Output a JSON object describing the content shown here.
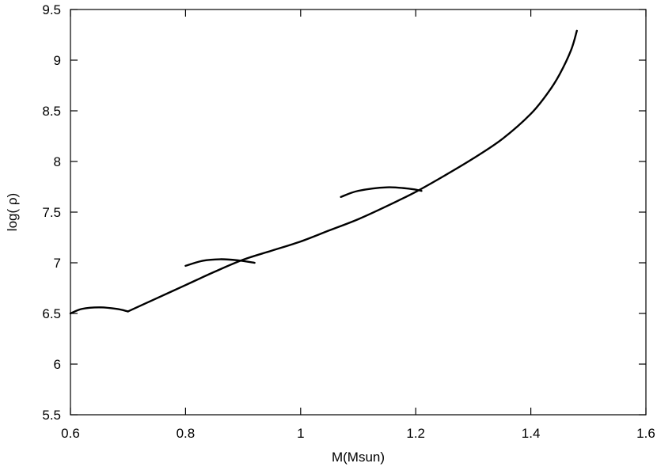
{
  "chart_data": {
    "type": "line",
    "title": "",
    "xlabel": "M(Msun)",
    "ylabel": "log( ρ)",
    "xlim": [
      0.6,
      1.6
    ],
    "ylim": [
      5.5,
      9.5
    ],
    "xticks": [
      "0.6",
      "0.8",
      "1",
      "1.2",
      "1.4",
      "1.6"
    ],
    "yticks": [
      "5.5",
      "6",
      "6.5",
      "7",
      "7.5",
      "8",
      "8.5",
      "9",
      "9.5"
    ],
    "grid": false,
    "legend": "none",
    "color": "#000000",
    "series": [
      {
        "x": [
          0.7,
          0.75,
          0.8,
          0.85,
          0.9,
          0.95,
          1.0,
          1.05,
          1.1,
          1.15,
          1.2,
          1.25,
          1.3,
          1.35,
          1.4,
          1.43,
          1.45,
          1.47,
          1.48
        ],
        "y": [
          6.52,
          6.65,
          6.78,
          6.91,
          7.03,
          7.12,
          7.21,
          7.32,
          7.43,
          7.56,
          7.7,
          7.86,
          8.03,
          8.22,
          8.47,
          8.68,
          8.86,
          9.1,
          9.29
        ]
      },
      {
        "x": [
          0.6,
          0.62,
          0.65,
          0.68,
          0.7
        ],
        "y": [
          6.5,
          6.545,
          6.56,
          6.545,
          6.52
        ]
      },
      {
        "x": [
          0.8,
          0.83,
          0.86,
          0.89,
          0.92
        ],
        "y": [
          6.97,
          7.02,
          7.035,
          7.025,
          7.0
        ]
      },
      {
        "x": [
          1.07,
          1.1,
          1.15,
          1.19,
          1.21
        ],
        "y": [
          7.65,
          7.71,
          7.745,
          7.73,
          7.71
        ]
      }
    ]
  }
}
